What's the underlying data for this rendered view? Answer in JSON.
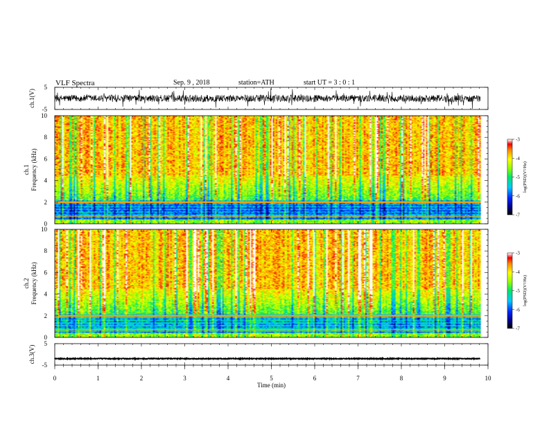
{
  "header": {
    "title": "VLF  Spectra",
    "date": "Sep. 9  , 2018",
    "station": "station=ATH",
    "start": "start  UT  =   3  : 0   : 1"
  },
  "chart_data": [
    {
      "type": "line",
      "panel": "ch1-waveform",
      "ylabel": "ch.1(V)",
      "yticks": [
        "5",
        "-5"
      ],
      "ylim": [
        -5,
        5
      ],
      "xlim": [
        0,
        10
      ],
      "x_end": 9.82,
      "baseline_level": 0.0,
      "noise_amplitude": 1.6
    },
    {
      "type": "heatmap",
      "panel": "ch1-spectrogram",
      "ylabel": "ch.1\nFrequency  (kHz)",
      "yticks": [
        "0",
        "2",
        "4",
        "6",
        "8",
        "10"
      ],
      "ylim": [
        0,
        10
      ],
      "xlim": [
        0,
        10
      ],
      "x_end": 9.82,
      "colorbar": {
        "label": "log(PSD)(V²/Hz)",
        "ticks": [
          "-3",
          "-4",
          "-5",
          "-6",
          "-7"
        ],
        "range": [
          -7,
          -3
        ]
      }
    },
    {
      "type": "heatmap",
      "panel": "ch2-spectrogram",
      "ylabel": "ch.2\nFrequency  (kHz)",
      "yticks": [
        "0",
        "2",
        "4",
        "6",
        "8",
        "10"
      ],
      "ylim": [
        0,
        10
      ],
      "xlim": [
        0,
        10
      ],
      "x_end": 9.82,
      "colorbar": {
        "label": "log(PSD)(V²/Hz)",
        "ticks": [
          "-3",
          "-4",
          "-5",
          "-6",
          "-7"
        ],
        "range": [
          -7,
          -3
        ]
      }
    },
    {
      "type": "line",
      "panel": "ch3-waveform",
      "ylabel": "ch.3(V)",
      "yticks": [
        "5",
        "-5"
      ],
      "ylim": [
        -5,
        5
      ],
      "xlim": [
        0,
        10
      ],
      "x_end": 9.82,
      "baseline_level": -2.0,
      "noise_amplitude": 0.2
    }
  ],
  "xaxis": {
    "label": "Time  (min)",
    "ticks": [
      "0",
      "1",
      "2",
      "3",
      "4",
      "5",
      "6",
      "7",
      "8",
      "9",
      "10"
    ]
  }
}
